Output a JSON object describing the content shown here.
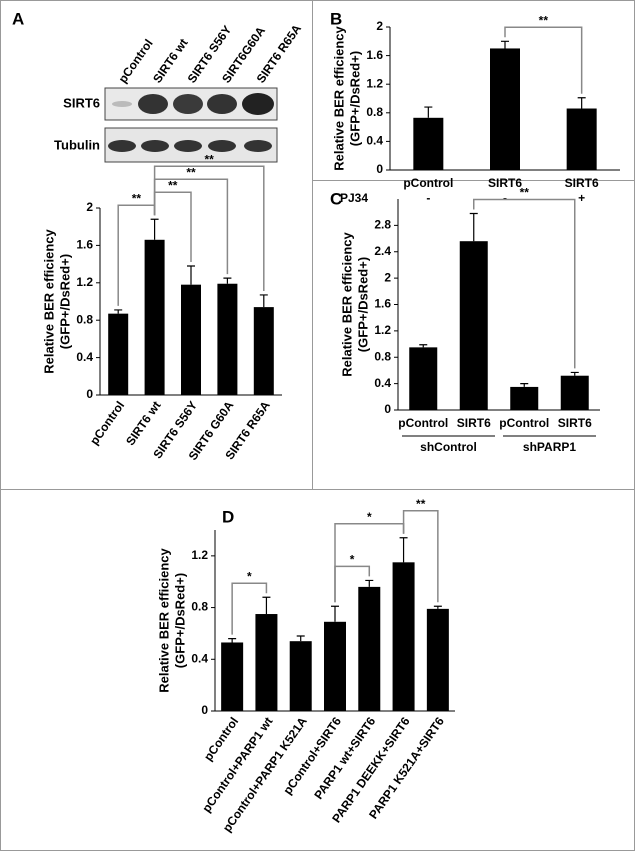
{
  "chart_data": [
    {
      "type": "bar",
      "panel": "A",
      "blot_lanes": [
        "pControl",
        "SIRT6 wt",
        "SIRT6 S56Y",
        "SIRT6G60A",
        "SIRT6 R65A"
      ],
      "blot_rows": [
        "SIRT6",
        "Tubulin"
      ],
      "ylabel": [
        "Relative BER efficiency",
        "(GFP+/DsRed+)"
      ],
      "categories": [
        "pControl",
        "SIRT6 wt",
        "SIRT6 S56Y",
        "SIRT6 G60A",
        "SIRT6 R65A"
      ],
      "values": [
        0.87,
        1.66,
        1.18,
        1.19,
        0.94
      ],
      "errors": [
        0.04,
        0.22,
        0.2,
        0.06,
        0.13
      ],
      "color": "#000000",
      "ylim": [
        0,
        2
      ],
      "yticks": [
        0,
        0.4,
        0.8,
        1.2,
        1.6,
        2
      ],
      "significance": [
        {
          "from": 0,
          "to": 1,
          "label": "**"
        },
        {
          "from": 1,
          "to": 2,
          "label": "**"
        },
        {
          "from": 1,
          "to": 3,
          "label": "**"
        },
        {
          "from": 1,
          "to": 4,
          "label": "**"
        }
      ]
    },
    {
      "type": "bar",
      "panel": "B",
      "ylabel": [
        "Relative BER efficiency",
        "(GFP+/DsRed+)"
      ],
      "categories": [
        "pControl",
        "SIRT6",
        "SIRT6"
      ],
      "row_label": "PJ34",
      "row_values": [
        "-",
        "-",
        "+"
      ],
      "values": [
        0.73,
        1.7,
        0.86
      ],
      "errors": [
        0.15,
        0.1,
        0.15
      ],
      "color": "#000000",
      "ylim": [
        0,
        2
      ],
      "yticks": [
        0,
        0.4,
        0.8,
        1.2,
        1.6,
        2
      ],
      "significance": [
        {
          "from": 1,
          "to": 2,
          "label": "**"
        }
      ]
    },
    {
      "type": "bar",
      "panel": "C",
      "ylabel": [
        "Relative BER efficiency",
        "(GFP+/DsRed+)"
      ],
      "categories": [
        "pControl",
        "SIRT6",
        "pControl",
        "SIRT6"
      ],
      "groups": [
        "shControl",
        "shPARP1"
      ],
      "values": [
        0.95,
        2.56,
        0.35,
        0.52
      ],
      "errors": [
        0.04,
        0.42,
        0.05,
        0.05
      ],
      "color": "#000000",
      "ylim": [
        0,
        3.2
      ],
      "yticks": [
        0,
        0.4,
        0.8,
        1.2,
        1.6,
        2,
        2.4,
        2.8
      ],
      "significance": [
        {
          "from": 1,
          "to": 3,
          "label": "**"
        }
      ]
    },
    {
      "type": "bar",
      "panel": "D",
      "ylabel": [
        "Relative BER efficiency",
        "(GFP+/DsRed+)"
      ],
      "categories": [
        "pControl",
        "pControl+PARP1 wt",
        "pControl+PARP1 K521A",
        "pControl+SIRT6",
        "PARP1 wt+SIRT6",
        "PARP1 DEEKK+SIRT6",
        "PARP1 K521A+SIRT6"
      ],
      "values": [
        0.53,
        0.75,
        0.54,
        0.69,
        0.96,
        1.15,
        0.79
      ],
      "errors": [
        0.03,
        0.13,
        0.04,
        0.12,
        0.05,
        0.19,
        0.02
      ],
      "color": "#000000",
      "ylim": [
        0,
        1.4
      ],
      "yticks": [
        0,
        0.4,
        0.8,
        1.2
      ],
      "significance": [
        {
          "from": 0,
          "to": 1,
          "label": "*"
        },
        {
          "from": 3,
          "to": 4,
          "label": "*"
        },
        {
          "from": 3,
          "to": 5,
          "label": "*"
        },
        {
          "from": 5,
          "to": 6,
          "label": "**"
        }
      ]
    }
  ]
}
